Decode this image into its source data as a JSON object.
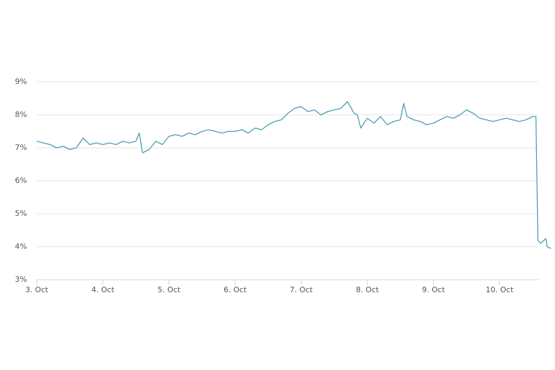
{
  "chart_data": {
    "type": "line",
    "x": [
      3.0,
      3.1,
      3.2,
      3.3,
      3.4,
      3.5,
      3.6,
      3.7,
      3.8,
      3.9,
      4.0,
      4.1,
      4.2,
      4.3,
      4.4,
      4.5,
      4.55,
      4.6,
      4.7,
      4.8,
      4.9,
      5.0,
      5.1,
      5.2,
      5.3,
      5.4,
      5.5,
      5.6,
      5.7,
      5.8,
      5.9,
      6.0,
      6.1,
      6.2,
      6.3,
      6.4,
      6.5,
      6.6,
      6.7,
      6.8,
      6.9,
      7.0,
      7.1,
      7.2,
      7.3,
      7.4,
      7.5,
      7.6,
      7.7,
      7.8,
      7.85,
      7.9,
      8.0,
      8.1,
      8.2,
      8.3,
      8.4,
      8.5,
      8.55,
      8.6,
      8.7,
      8.8,
      8.9,
      9.0,
      9.1,
      9.2,
      9.3,
      9.4,
      9.5,
      9.6,
      9.7,
      9.8,
      9.9,
      10.0,
      10.1,
      10.2,
      10.3,
      10.4,
      10.5,
      10.55,
      10.58,
      10.62,
      10.7,
      10.72,
      10.78
    ],
    "series": [
      {
        "color": "#4a9db2",
        "values": [
          7.2,
          7.15,
          7.1,
          7.0,
          7.05,
          6.95,
          7.0,
          7.3,
          7.1,
          7.15,
          7.1,
          7.15,
          7.1,
          7.2,
          7.15,
          7.2,
          7.45,
          6.85,
          6.95,
          7.2,
          7.1,
          7.35,
          7.4,
          7.35,
          7.45,
          7.4,
          7.5,
          7.55,
          7.5,
          7.45,
          7.5,
          7.5,
          7.55,
          7.45,
          7.6,
          7.55,
          7.7,
          7.8,
          7.85,
          8.05,
          8.2,
          8.25,
          8.1,
          8.15,
          8.0,
          8.1,
          8.15,
          8.2,
          8.4,
          8.05,
          8.0,
          7.6,
          7.9,
          7.75,
          7.95,
          7.7,
          7.8,
          7.85,
          8.35,
          7.95,
          7.85,
          7.8,
          7.7,
          7.75,
          7.85,
          7.95,
          7.9,
          8.0,
          8.15,
          8.05,
          7.9,
          7.85,
          7.8,
          7.85,
          7.9,
          7.85,
          7.8,
          7.85,
          7.95,
          7.95,
          4.2,
          4.1,
          4.25,
          4.0,
          3.95
        ]
      }
    ],
    "xlim": [
      3,
      10.8
    ],
    "xticks": [
      {
        "value": 3,
        "label": "3. Oct"
      },
      {
        "value": 4,
        "label": "4. Oct"
      },
      {
        "value": 5,
        "label": "5. Oct"
      },
      {
        "value": 6,
        "label": "6. Oct"
      },
      {
        "value": 7,
        "label": "7. Oct"
      },
      {
        "value": 8,
        "label": "8. Oct"
      },
      {
        "value": 9,
        "label": "9. Oct"
      },
      {
        "value": 10,
        "label": "10. Oct"
      }
    ],
    "ylim": [
      3,
      9
    ],
    "yticks": [
      {
        "value": 3,
        "label": "3%"
      },
      {
        "value": 4,
        "label": "4%"
      },
      {
        "value": 5,
        "label": "5%"
      },
      {
        "value": 6,
        "label": "6%"
      },
      {
        "value": 7,
        "label": "7%"
      },
      {
        "value": 8,
        "label": "8%"
      },
      {
        "value": 9,
        "label": "9%"
      }
    ],
    "grid": true
  }
}
